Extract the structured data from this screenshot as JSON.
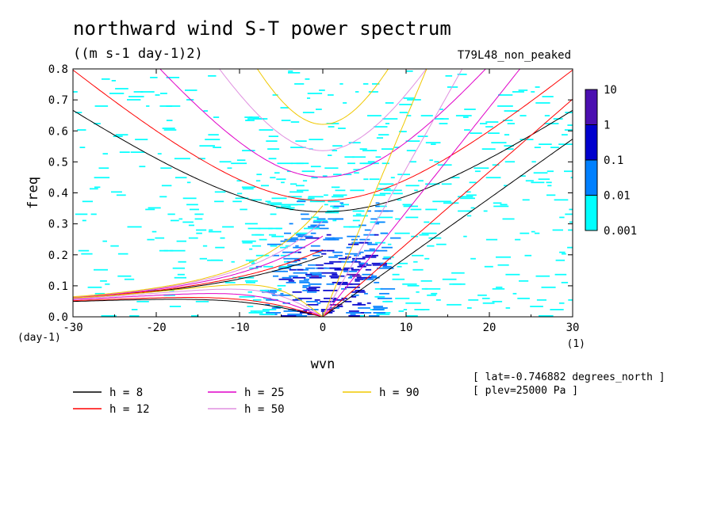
{
  "title": "northward wind S-T power spectrum",
  "units": "((m s-1 day-1)2)",
  "run_label": "T79L48_non_peaked",
  "info": [
    "[ lat=-0.746882 degrees_north ]",
    "[ plev=25000 Pa ]"
  ],
  "chart_data": {
    "type": "heatmap",
    "xlabel": "wvn",
    "ylabel": "freq",
    "x_unit": "(1)",
    "y_unit": "(day-1)",
    "xlim": [
      -30,
      30
    ],
    "ylim": [
      0,
      0.8
    ],
    "x_ticks": [
      -30,
      -20,
      -10,
      0,
      10,
      20,
      30
    ],
    "x_tick_labels": [
      "-30",
      "-20",
      "-10",
      "0",
      "10",
      "20",
      "30"
    ],
    "y_ticks": [
      0,
      0.1,
      0.2,
      0.3,
      0.4,
      0.5,
      0.6,
      0.7,
      0.8
    ],
    "y_tick_labels": [
      "0.0",
      "0.1",
      "0.2",
      "0.3",
      "0.4",
      "0.5",
      "0.6",
      "0.7",
      "0.8"
    ],
    "colorbar": {
      "levels": [
        0.001,
        0.01,
        0.1,
        1,
        10
      ],
      "labels": [
        "0.001",
        "0.01",
        "0.1",
        "1",
        "10"
      ],
      "colors": [
        "#00ffff",
        "#0080ff",
        "#0000cd",
        "#4b0fb0"
      ]
    },
    "dispersion_curves": [
      {
        "label": "h =  8",
        "h": 8,
        "color": "#000000"
      },
      {
        "label": "h = 12",
        "h": 12,
        "color": "#ff0000"
      },
      {
        "label": "h = 25",
        "h": 25,
        "color": "#e000c8"
      },
      {
        "label": "h = 50",
        "h": 50,
        "color": "#e090e0"
      },
      {
        "label": "h = 90",
        "h": 90,
        "color": "#f0c800"
      }
    ]
  }
}
